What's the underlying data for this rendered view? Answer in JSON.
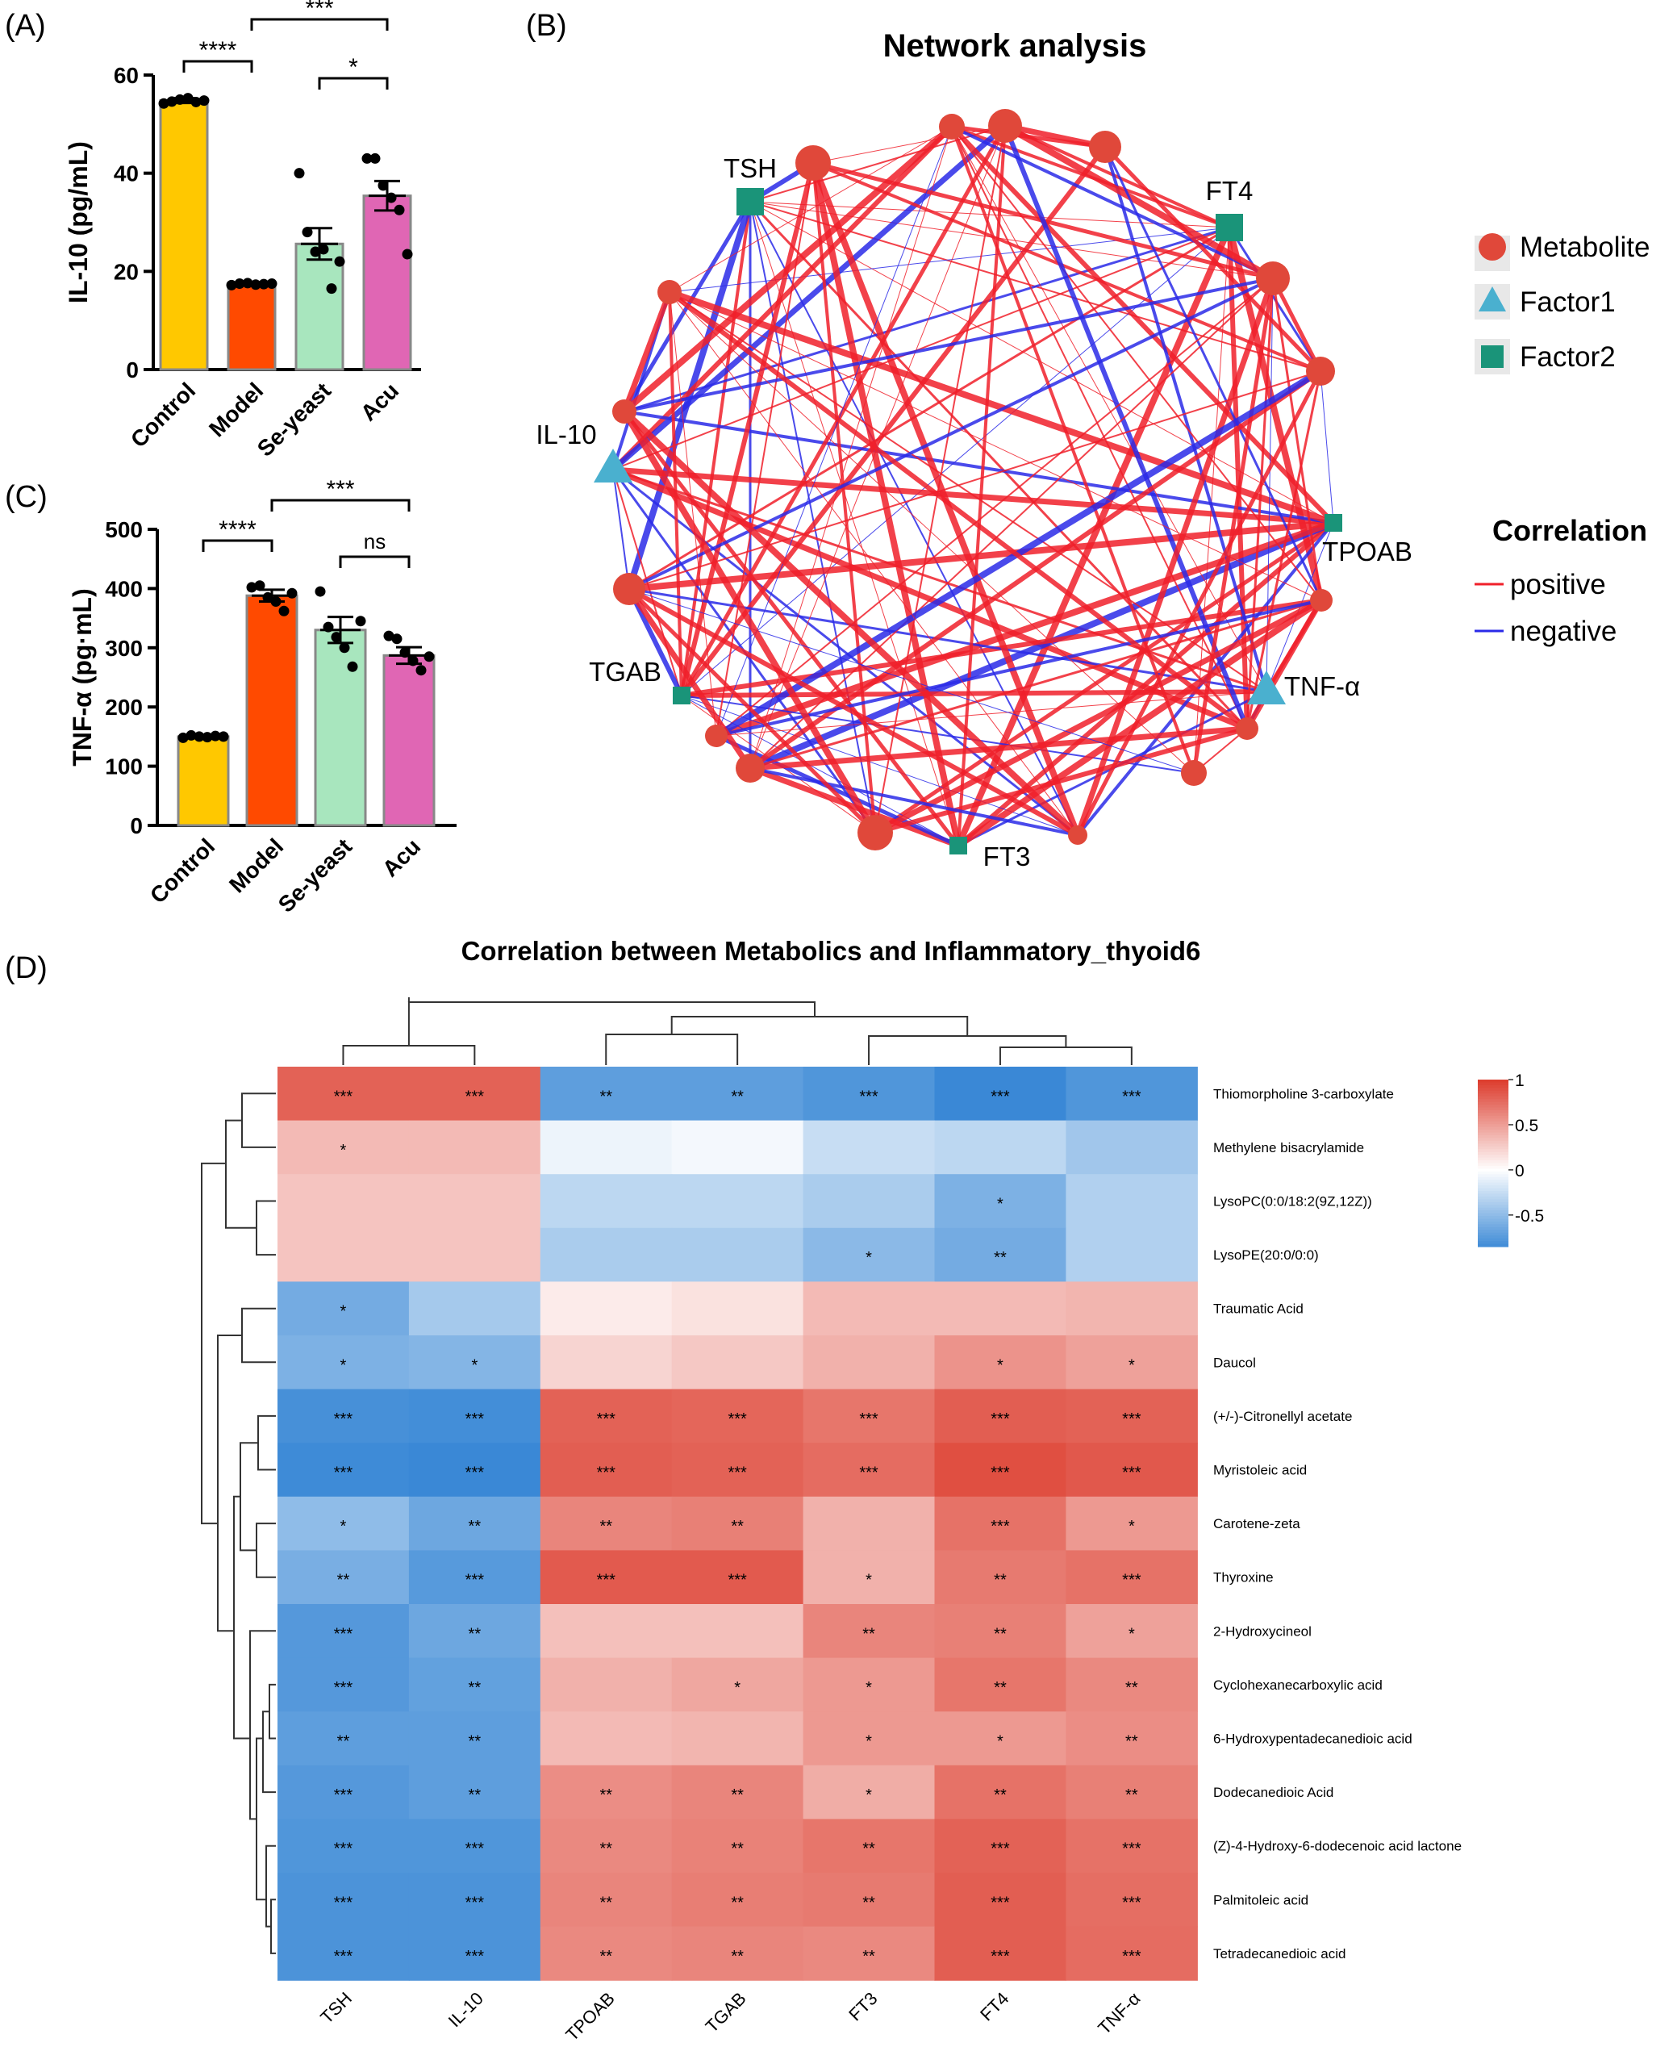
{
  "panel_labels": {
    "a": "(A)",
    "b": "(B)",
    "c": "(C)",
    "d": "(D)"
  },
  "chart_data": [
    {
      "type": "bar",
      "id": "A",
      "categories": [
        "Control",
        "Model",
        "Se-yeast",
        "Acu"
      ],
      "values": [
        54.8,
        17.4,
        25.6,
        35.4
      ],
      "sem": [
        0.5,
        0.3,
        3.2,
        3.0
      ],
      "points": [
        [
          54.2,
          54.6,
          55.0,
          55.3,
          54.5,
          54.8
        ],
        [
          17.2,
          17.5,
          17.6,
          17.3,
          17.4,
          17.5
        ],
        [
          40.0,
          28.0,
          24.0,
          24.5,
          16.5,
          22.0
        ],
        [
          43.0,
          43.0,
          37.5,
          35.0,
          32.5,
          23.5
        ]
      ],
      "colors": [
        "#ffc800",
        "#ff4a00",
        "#a8e6be",
        "#e066b4"
      ],
      "xlabel": "",
      "ylabel": "IL-10 (pg/mL)",
      "ylim": [
        0,
        60
      ],
      "yticks": [
        0,
        20,
        40,
        60
      ],
      "significance": [
        {
          "from": 0,
          "to": 1,
          "label": "****"
        },
        {
          "from": 1,
          "to": 3,
          "label": "***"
        },
        {
          "from": 2,
          "to": 3,
          "label": "*"
        }
      ]
    },
    {
      "type": "bar",
      "id": "C",
      "categories": [
        "Control",
        "Model",
        "Se-yeast",
        "Acu"
      ],
      "values": [
        150,
        388,
        330,
        287
      ],
      "sem": [
        2,
        10,
        22,
        14
      ],
      "points": [
        [
          148,
          152,
          150,
          149,
          151,
          150
        ],
        [
          402,
          405,
          385,
          378,
          362,
          392
        ],
        [
          395,
          335,
          318,
          300,
          268,
          345
        ],
        [
          320,
          315,
          292,
          278,
          262,
          285
        ]
      ],
      "colors": [
        "#ffc800",
        "#ff4a00",
        "#a8e6be",
        "#e066b4"
      ],
      "xlabel": "",
      "ylabel": "TNF-α (pg·mL)",
      "ylim": [
        0,
        500
      ],
      "yticks": [
        0,
        100,
        200,
        300,
        400,
        500
      ],
      "significance": [
        {
          "from": 0,
          "to": 1,
          "label": "****"
        },
        {
          "from": 1,
          "to": 3,
          "label": "***"
        },
        {
          "from": 2,
          "to": 3,
          "label": "ns"
        }
      ]
    },
    {
      "type": "network",
      "id": "B",
      "title": "Network analysis",
      "node_labels": [
        "TSH",
        "FT4",
        "IL-10",
        "TPOAB",
        "TGAB",
        "TNF-α",
        "FT3"
      ],
      "legend_nodes": [
        "Metabolite",
        "Factor1",
        "Factor2"
      ],
      "legend_corr_title": "Correlation",
      "legend_corr": [
        "positive",
        "negative"
      ],
      "colors": {
        "metabolite": "#e0483a",
        "factor1": "#4ab0cf",
        "factor2": "#1a9479",
        "positive": "#f0202a",
        "negative": "#2a2ae8"
      }
    },
    {
      "type": "heatmap",
      "id": "D",
      "title": "Correlation between Metabolics and Inflammatory_thyoid6",
      "columns": [
        "TSH",
        "IL-10",
        "TPOAB",
        "TGAB",
        "FT3",
        "FT4",
        "TNF-α"
      ],
      "rows": [
        "Thiomorpholine 3-carboxylate",
        "Methylene bisacrylamide",
        "LysoPC(0:0/18:2(9Z,12Z))",
        "LysoPE(20:0/0:0)",
        "Traumatic Acid",
        "Daucol",
        "(+/-)-Citronellyl acetate",
        "Myristoleic acid",
        "Carotene-zeta",
        "Thyroxine",
        "2-Hydroxycineol",
        "Cyclohexanecarboxylic acid",
        "6-Hydroxypentadecanedioic acid",
        "Dodecanedioic Acid",
        "(Z)-4-Hydroxy-6-dodecenoic acid lactone",
        "Palmitoleic acid",
        "Tetradecanedioic acid"
      ],
      "values": [
        [
          0.8,
          0.8,
          -0.72,
          -0.72,
          -0.78,
          -0.88,
          -0.78
        ],
        [
          0.35,
          0.35,
          -0.08,
          -0.05,
          -0.25,
          -0.3,
          -0.42
        ],
        [
          0.3,
          0.3,
          -0.3,
          -0.3,
          -0.38,
          -0.58,
          -0.35
        ],
        [
          0.3,
          0.3,
          -0.38,
          -0.38,
          -0.52,
          -0.62,
          -0.35
        ],
        [
          -0.62,
          -0.4,
          0.1,
          0.15,
          0.35,
          0.35,
          0.38
        ],
        [
          -0.58,
          -0.55,
          0.22,
          0.28,
          0.4,
          0.55,
          0.48
        ],
        [
          -0.82,
          -0.84,
          0.8,
          0.78,
          0.7,
          0.82,
          0.8
        ],
        [
          -0.86,
          -0.88,
          0.82,
          0.8,
          0.75,
          0.9,
          0.85
        ],
        [
          -0.5,
          -0.65,
          0.62,
          0.65,
          0.4,
          0.72,
          0.52
        ],
        [
          -0.6,
          -0.75,
          0.84,
          0.84,
          0.4,
          0.68,
          0.72
        ],
        [
          -0.76,
          -0.65,
          0.32,
          0.32,
          0.62,
          0.65,
          0.48
        ],
        [
          -0.76,
          -0.7,
          0.4,
          0.45,
          0.52,
          0.7,
          0.6
        ],
        [
          -0.72,
          -0.72,
          0.35,
          0.38,
          0.52,
          0.52,
          0.58
        ],
        [
          -0.76,
          -0.72,
          0.58,
          0.62,
          0.42,
          0.72,
          0.65
        ],
        [
          -0.78,
          -0.78,
          0.6,
          0.64,
          0.7,
          0.8,
          0.72
        ],
        [
          -0.8,
          -0.8,
          0.62,
          0.66,
          0.68,
          0.82,
          0.74
        ],
        [
          -0.8,
          -0.8,
          0.6,
          0.62,
          0.6,
          0.82,
          0.75
        ]
      ],
      "stars": [
        [
          "***",
          "***",
          "**",
          "**",
          "***",
          "***",
          "***"
        ],
        [
          "*",
          "",
          "",
          "",
          "",
          "",
          ""
        ],
        [
          "",
          "",
          "",
          "",
          "",
          "*",
          ""
        ],
        [
          "",
          "",
          "",
          "",
          "*",
          "**",
          ""
        ],
        [
          "*",
          "",
          "",
          "",
          "",
          "",
          ""
        ],
        [
          "*",
          "*",
          "",
          "",
          "",
          "*",
          "*"
        ],
        [
          "***",
          "***",
          "***",
          "***",
          "***",
          "***",
          "***"
        ],
        [
          "***",
          "***",
          "***",
          "***",
          "***",
          "***",
          "***"
        ],
        [
          "*",
          "**",
          "**",
          "**",
          "",
          "***",
          "*"
        ],
        [
          "**",
          "***",
          "***",
          "***",
          "*",
          "**",
          "***"
        ],
        [
          "***",
          "**",
          "",
          "",
          "**",
          "**",
          "*"
        ],
        [
          "***",
          "**",
          "",
          "*",
          "*",
          "**",
          "**"
        ],
        [
          "**",
          "**",
          "",
          "",
          "*",
          "*",
          "**"
        ],
        [
          "***",
          "**",
          "**",
          "**",
          "*",
          "**",
          "**"
        ],
        [
          "***",
          "***",
          "**",
          "**",
          "**",
          "***",
          "***"
        ],
        [
          "***",
          "***",
          "**",
          "**",
          "**",
          "***",
          "***"
        ],
        [
          "***",
          "***",
          "**",
          "**",
          "**",
          "***",
          "***"
        ]
      ],
      "colorbar_ticks": [
        "1",
        "0.5",
        "0",
        "-0.5"
      ],
      "color_low": "#1f78d0",
      "color_mid": "#ffffff",
      "color_high": "#dc3b2c"
    }
  ]
}
